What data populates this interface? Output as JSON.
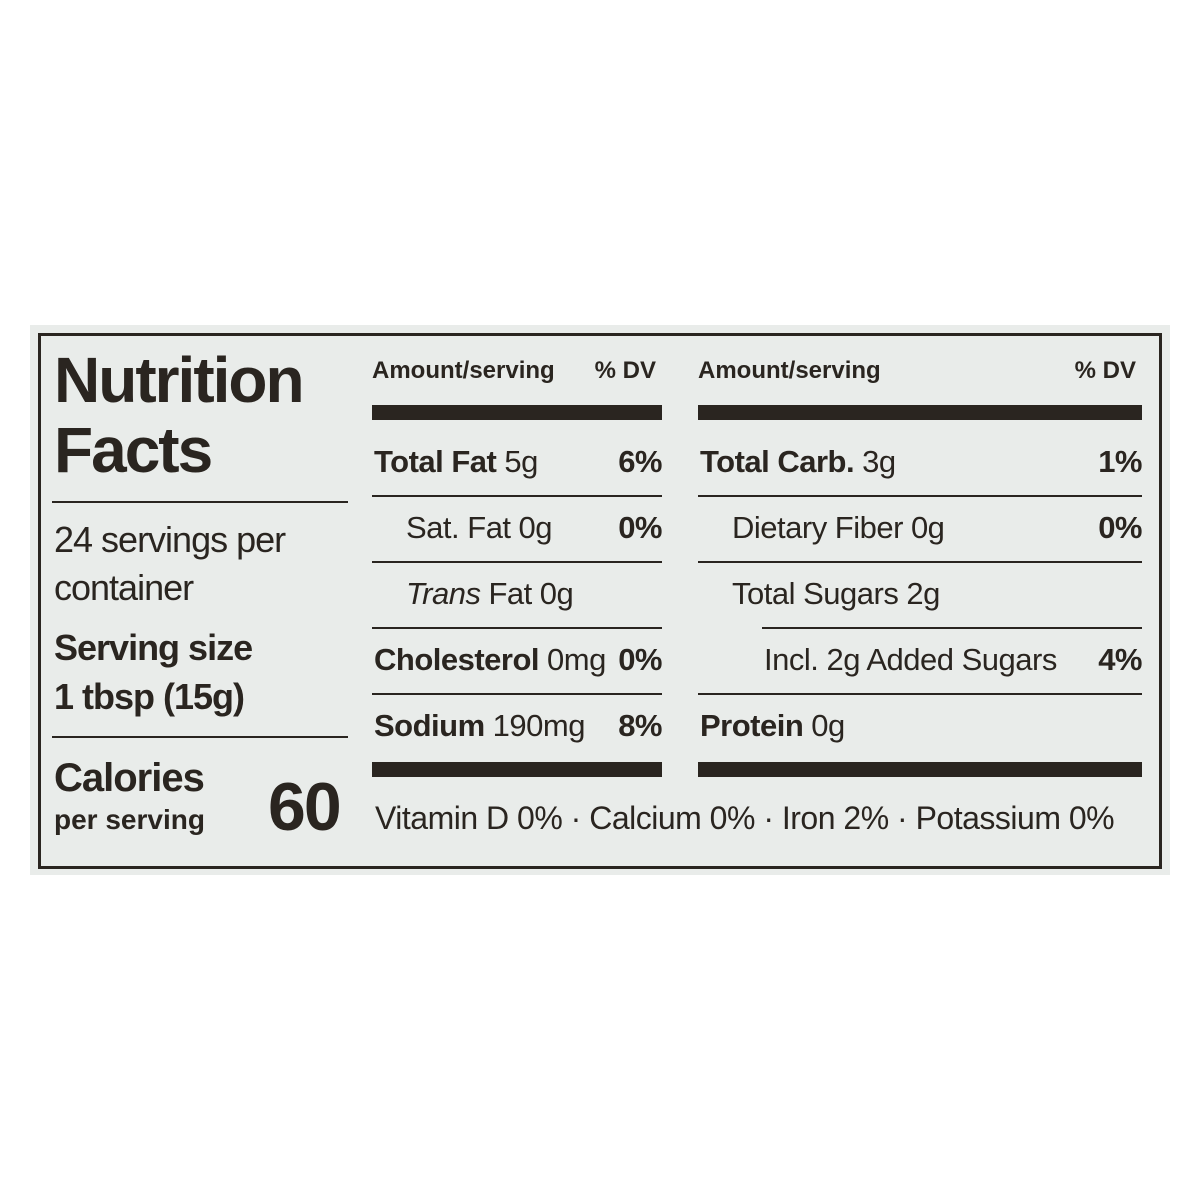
{
  "label": {
    "title": "Nutrition Facts",
    "servings": "24 servings per container",
    "serving_size_label": "Serving size",
    "serving_size_value": "1 tbsp (15g)",
    "calories_label": "Calories",
    "calories_sub": "per serving",
    "calories_value": "60",
    "columns": [
      {
        "amount_header": "Amount/serving",
        "dv_header": "% DV",
        "rows": [
          {
            "name": "Total Fat",
            "amount": "5g",
            "dv": "6%",
            "bold": true,
            "indent": 0
          },
          {
            "name": "Sat. Fat",
            "amount": "0g",
            "dv": "0%",
            "bold": false,
            "indent": 1
          },
          {
            "name_italic": "Trans",
            "name": "Fat",
            "amount": "0g",
            "bold": false,
            "indent": 1
          },
          {
            "name": "Cholesterol",
            "amount": "0mg",
            "dv": "0%",
            "bold": true,
            "indent": 0
          },
          {
            "name": "Sodium",
            "amount": "190mg",
            "dv": "8%",
            "bold": true,
            "indent": 0
          }
        ]
      },
      {
        "amount_header": "Amount/serving",
        "dv_header": "% DV",
        "rows": [
          {
            "name": "Total Carb.",
            "amount": "3g",
            "dv": "1%",
            "bold": true,
            "indent": 0
          },
          {
            "name": "Dietary Fiber",
            "amount": "0g",
            "dv": "0%",
            "bold": false,
            "indent": 1
          },
          {
            "name": "Total Sugars",
            "amount": "2g",
            "bold": false,
            "indent": 1
          },
          {
            "name": "Incl. 2g Added Sugars",
            "dv": "4%",
            "bold": false,
            "indent": 2
          },
          {
            "name": "Protein",
            "amount": "0g",
            "bold": true,
            "indent": 0
          }
        ]
      }
    ],
    "footer": "Vitamin D 0% · Calcium 0% · Iron 2% · Potassium 0%"
  }
}
